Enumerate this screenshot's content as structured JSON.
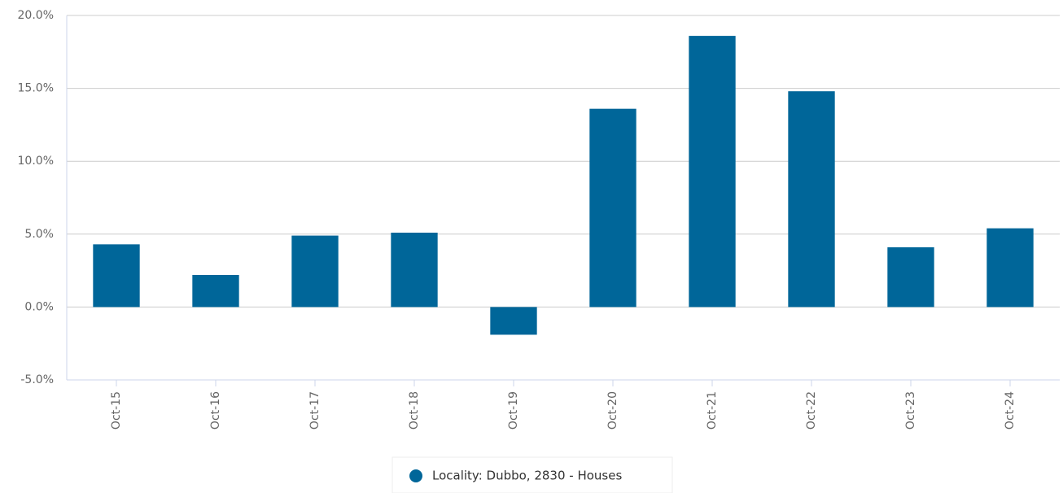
{
  "chart_data": {
    "type": "bar",
    "categories": [
      "Oct-15",
      "Oct-16",
      "Oct-17",
      "Oct-18",
      "Oct-19",
      "Oct-20",
      "Oct-21",
      "Oct-22",
      "Oct-23",
      "Oct-24"
    ],
    "series": [
      {
        "name": "Locality: Dubbo, 2830 - Houses",
        "color": "#006699",
        "values": [
          4.3,
          2.2,
          4.9,
          5.1,
          -1.9,
          13.6,
          18.6,
          14.8,
          4.1,
          5.4
        ]
      }
    ],
    "ylim": [
      -5,
      20
    ],
    "yticks": [
      {
        "value": -5,
        "label": "-5.0%"
      },
      {
        "value": 0,
        "label": "0.0%"
      },
      {
        "value": 5,
        "label": "5.0%"
      },
      {
        "value": 10,
        "label": "10.0%"
      },
      {
        "value": 15,
        "label": "15.0%"
      },
      {
        "value": 20,
        "label": "20.0%"
      }
    ],
    "grid": true,
    "legend": "bottom"
  }
}
